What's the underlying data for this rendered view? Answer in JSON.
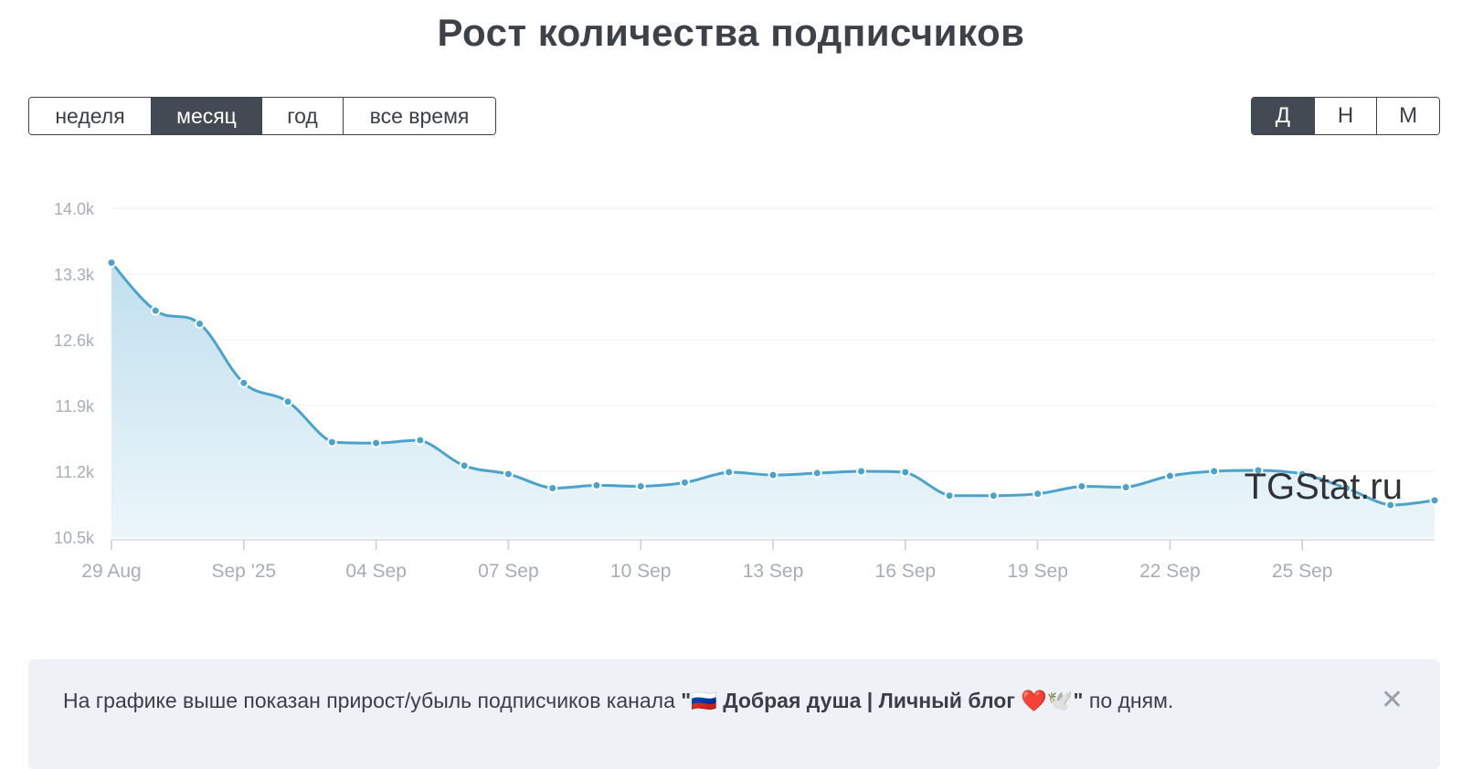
{
  "title": "Рост количества подписчиков",
  "period_buttons": [
    {
      "label": "неделя",
      "active": false
    },
    {
      "label": "месяц",
      "active": true
    },
    {
      "label": "год",
      "active": false
    },
    {
      "label": "все время",
      "active": false
    }
  ],
  "granularity_buttons": [
    {
      "label": "Д",
      "active": true
    },
    {
      "label": "Н",
      "active": false
    },
    {
      "label": "М",
      "active": false
    }
  ],
  "watermark": "TGStat.ru",
  "info": {
    "text_before": "На графике выше показан прирост/убыль подписчиков канала ",
    "channel": "\"🇷🇺 Добрая душа | Личный блог ❤️🕊️\"",
    "text_after": " по дням.",
    "close_symbol": "✕"
  },
  "colors": {
    "line": "#4ba3cb",
    "fill_top": "#b9dceb",
    "fill_bottom": "#eaf5fa",
    "active_button": "#434a54"
  },
  "chart_data": {
    "type": "area",
    "x": [
      "29 Aug",
      "30 Aug",
      "31 Aug",
      "01 Sep",
      "02 Sep",
      "03 Sep",
      "04 Sep",
      "05 Sep",
      "06 Sep",
      "07 Sep",
      "08 Sep",
      "09 Sep",
      "10 Sep",
      "11 Sep",
      "12 Sep",
      "13 Sep",
      "14 Sep",
      "15 Sep",
      "16 Sep",
      "17 Sep",
      "18 Sep",
      "19 Sep",
      "20 Sep",
      "21 Sep",
      "22 Sep",
      "23 Sep",
      "24 Sep",
      "25 Sep",
      "26 Sep",
      "27 Sep",
      "28 Sep"
    ],
    "series": [
      {
        "values": [
          13420,
          12910,
          12770,
          12140,
          11940,
          11510,
          11500,
          11530,
          11260,
          11170,
          11020,
          11050,
          11040,
          11080,
          11190,
          11160,
          11180,
          11200,
          11190,
          10940,
          10940,
          10960,
          11040,
          11030,
          11150,
          11200,
          11210,
          11170,
          11020,
          10840,
          10890
        ]
      }
    ],
    "ylim": [
      10500,
      14000
    ],
    "yticks": [
      "14.0k",
      "13.3k",
      "12.6k",
      "11.9k",
      "11.2k",
      "10.5k"
    ],
    "ytick_values": [
      14000,
      13300,
      12600,
      11900,
      11200,
      10500
    ],
    "xticks": [
      "29 Aug",
      "Sep '25",
      "04 Sep",
      "07 Sep",
      "10 Sep",
      "13 Sep",
      "16 Sep",
      "19 Sep",
      "22 Sep",
      "25 Sep"
    ],
    "xtick_index": [
      0,
      3,
      6,
      9,
      12,
      15,
      18,
      21,
      24,
      27
    ],
    "grid": true
  }
}
